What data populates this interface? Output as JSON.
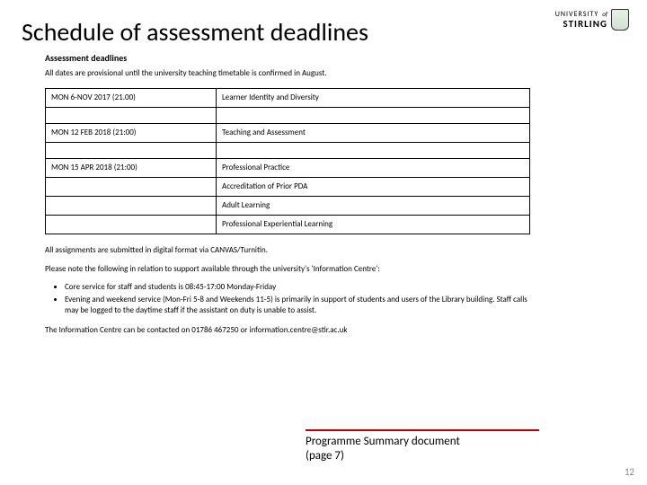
{
  "slide": {
    "title": "Schedule of assessment deadlines",
    "page_number": "12"
  },
  "logo": {
    "line1": "UNIVERSITY",
    "of": "of",
    "line2": "STIRLING"
  },
  "document": {
    "heading": "Assessment deadlines",
    "subtitle": "All dates are provisional until the university teaching timetable is confirmed in August.",
    "table_rows": [
      {
        "date": "MON 6-NOV 2017  (21.00)",
        "module": "Learner Identity and Diversity"
      },
      {
        "date": "",
        "module": ""
      },
      {
        "date": "MON 12 FEB 2018  (21:00)",
        "module": "Teaching and Assessment"
      },
      {
        "date": "",
        "module": ""
      },
      {
        "date": "MON 15 APR 2018  (21:00)",
        "module": "Professional Practice"
      },
      {
        "date": "",
        "module": "Accreditation of Prior PDA"
      },
      {
        "date": "",
        "module": "Adult Learning"
      },
      {
        "date": "",
        "module": "Professional Experiential Learning"
      }
    ],
    "para1": "All assignments are submitted in digital format via CANVAS/Turnitin.",
    "para2": "Please note the following in relation to support available through the university's 'Information Centre':",
    "bullets": [
      "Core service for staff and students is 08:45-17:00 Monday-Friday",
      "Evening and weekend service (Mon-Fri 5-8 and Weekends 11-5) is primarily in support of students and users of the Library building. Staff calls may be logged to the daytime staff if the assistant on duty is unable to assist."
    ],
    "para3": "The Information Centre can be contacted on 01786 467250 or information.centre@stir.ac.uk"
  },
  "footer": {
    "text_line1": "Programme Summary document",
    "text_line2": "(page 7)",
    "accent_color": "#c00000"
  }
}
